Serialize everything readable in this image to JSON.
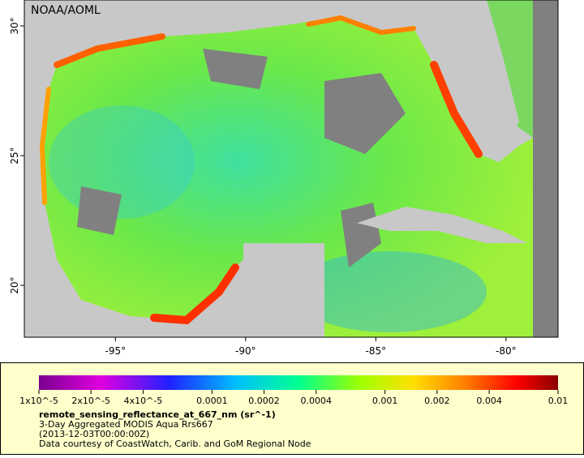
{
  "map": {
    "label": "NOAA/AOML",
    "xlim": [
      -98.5,
      -78
    ],
    "ylim": [
      18,
      31
    ],
    "xticks": [
      {
        "value": -95,
        "label": "-95°"
      },
      {
        "value": -90,
        "label": "-90°"
      },
      {
        "value": -85,
        "label": "-85°"
      },
      {
        "value": -80,
        "label": "-80°"
      }
    ],
    "yticks": [
      {
        "value": 30,
        "label": "30°"
      },
      {
        "value": 25,
        "label": "25°"
      },
      {
        "value": 20,
        "label": "20°"
      }
    ]
  },
  "colorbar": {
    "scale": "log",
    "lim": [
      1e-05,
      0.01
    ],
    "ticks": [
      {
        "value": 1e-05,
        "label": "1x10^-5"
      },
      {
        "value": 2e-05,
        "label": "2x10^-5"
      },
      {
        "value": 4e-05,
        "label": "4x10^-5"
      },
      0.0001,
      0.0002,
      0.0004,
      0.001,
      0.002,
      0.004,
      0.01
    ]
  },
  "legend": {
    "title": "remote_sensing_reflectance_at_667_nm (sr^-1)",
    "lines": [
      "3-Day Aggregated MODIS Aqua Rrs667",
      "(2013-12-03T00:00:00Z)",
      "Data courtesy of CoastWatch, Carib. and GoM Regional Node"
    ]
  }
}
